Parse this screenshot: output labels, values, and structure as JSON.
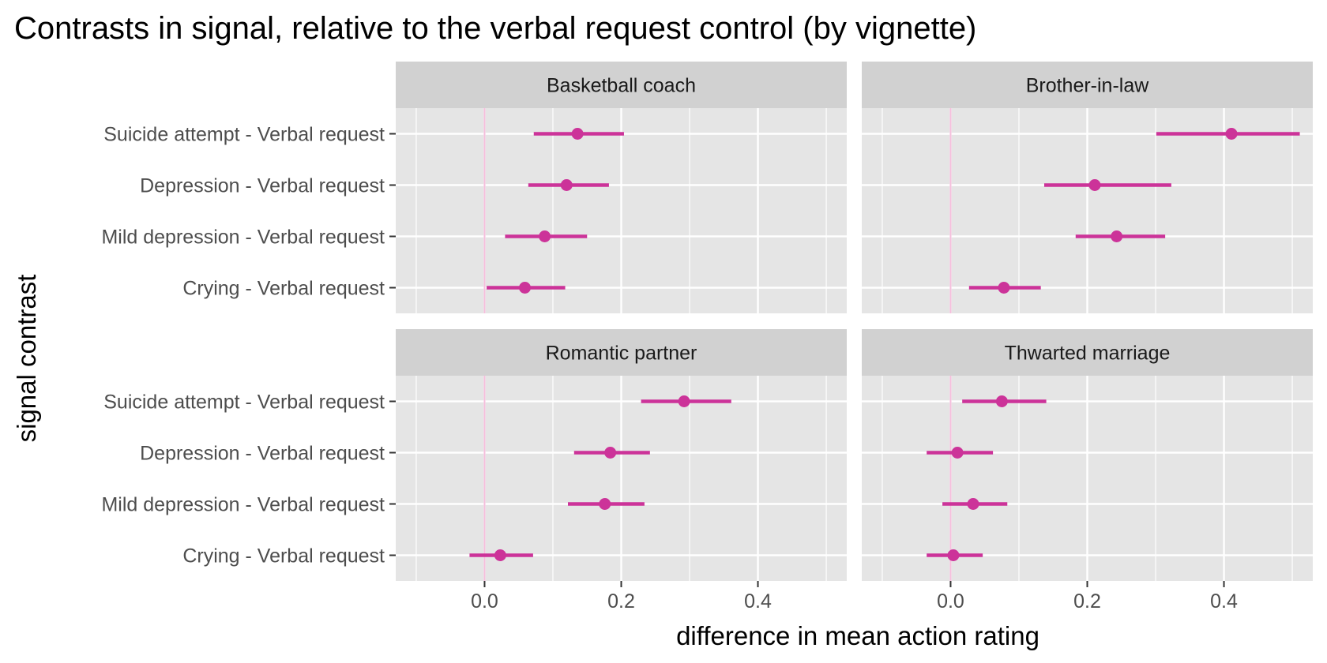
{
  "chart_data": {
    "type": "scatter",
    "title": "Contrasts in signal, relative to the verbal request control (by vignette)",
    "xlabel": "difference in mean action rating",
    "ylabel": "signal contrast",
    "xlim": [
      -0.13,
      0.53
    ],
    "x_ticks": [
      0.0,
      0.2,
      0.4
    ],
    "x_tick_labels": [
      "0.0",
      "0.2",
      "0.4"
    ],
    "reference_line_x": 0,
    "grid": true,
    "facet_layout": "2x2",
    "categories": [
      "Suicide attempt - Verbal request",
      "Depression - Verbal request",
      "Mild depression - Verbal request",
      "Crying - Verbal request"
    ],
    "colors": {
      "point": "#CC3399",
      "interval": "#CC3399",
      "reference_line": "#F5BEDC",
      "panel_bg": "#E5E5E5",
      "strip_bg": "#D1D1D1",
      "grid": "#FFFFFF"
    },
    "panels": [
      {
        "name": "Basketball coach",
        "estimate": [
          0.136,
          0.12,
          0.088,
          0.059
        ],
        "lower": [
          0.072,
          0.064,
          0.03,
          0.003
        ],
        "upper": [
          0.204,
          0.182,
          0.15,
          0.118
        ]
      },
      {
        "name": "Brother-in-law",
        "estimate": [
          0.411,
          0.211,
          0.243,
          0.078
        ],
        "lower": [
          0.301,
          0.137,
          0.183,
          0.027
        ],
        "upper": [
          0.511,
          0.323,
          0.314,
          0.132
        ]
      },
      {
        "name": "Romantic partner",
        "estimate": [
          0.292,
          0.184,
          0.176,
          0.023
        ],
        "lower": [
          0.229,
          0.131,
          0.122,
          -0.022
        ],
        "upper": [
          0.361,
          0.242,
          0.234,
          0.071
        ]
      },
      {
        "name": "Thwarted marriage",
        "estimate": [
          0.075,
          0.01,
          0.033,
          0.004
        ],
        "lower": [
          0.017,
          -0.035,
          -0.012,
          -0.035
        ],
        "upper": [
          0.14,
          0.062,
          0.083,
          0.047
        ]
      }
    ]
  }
}
